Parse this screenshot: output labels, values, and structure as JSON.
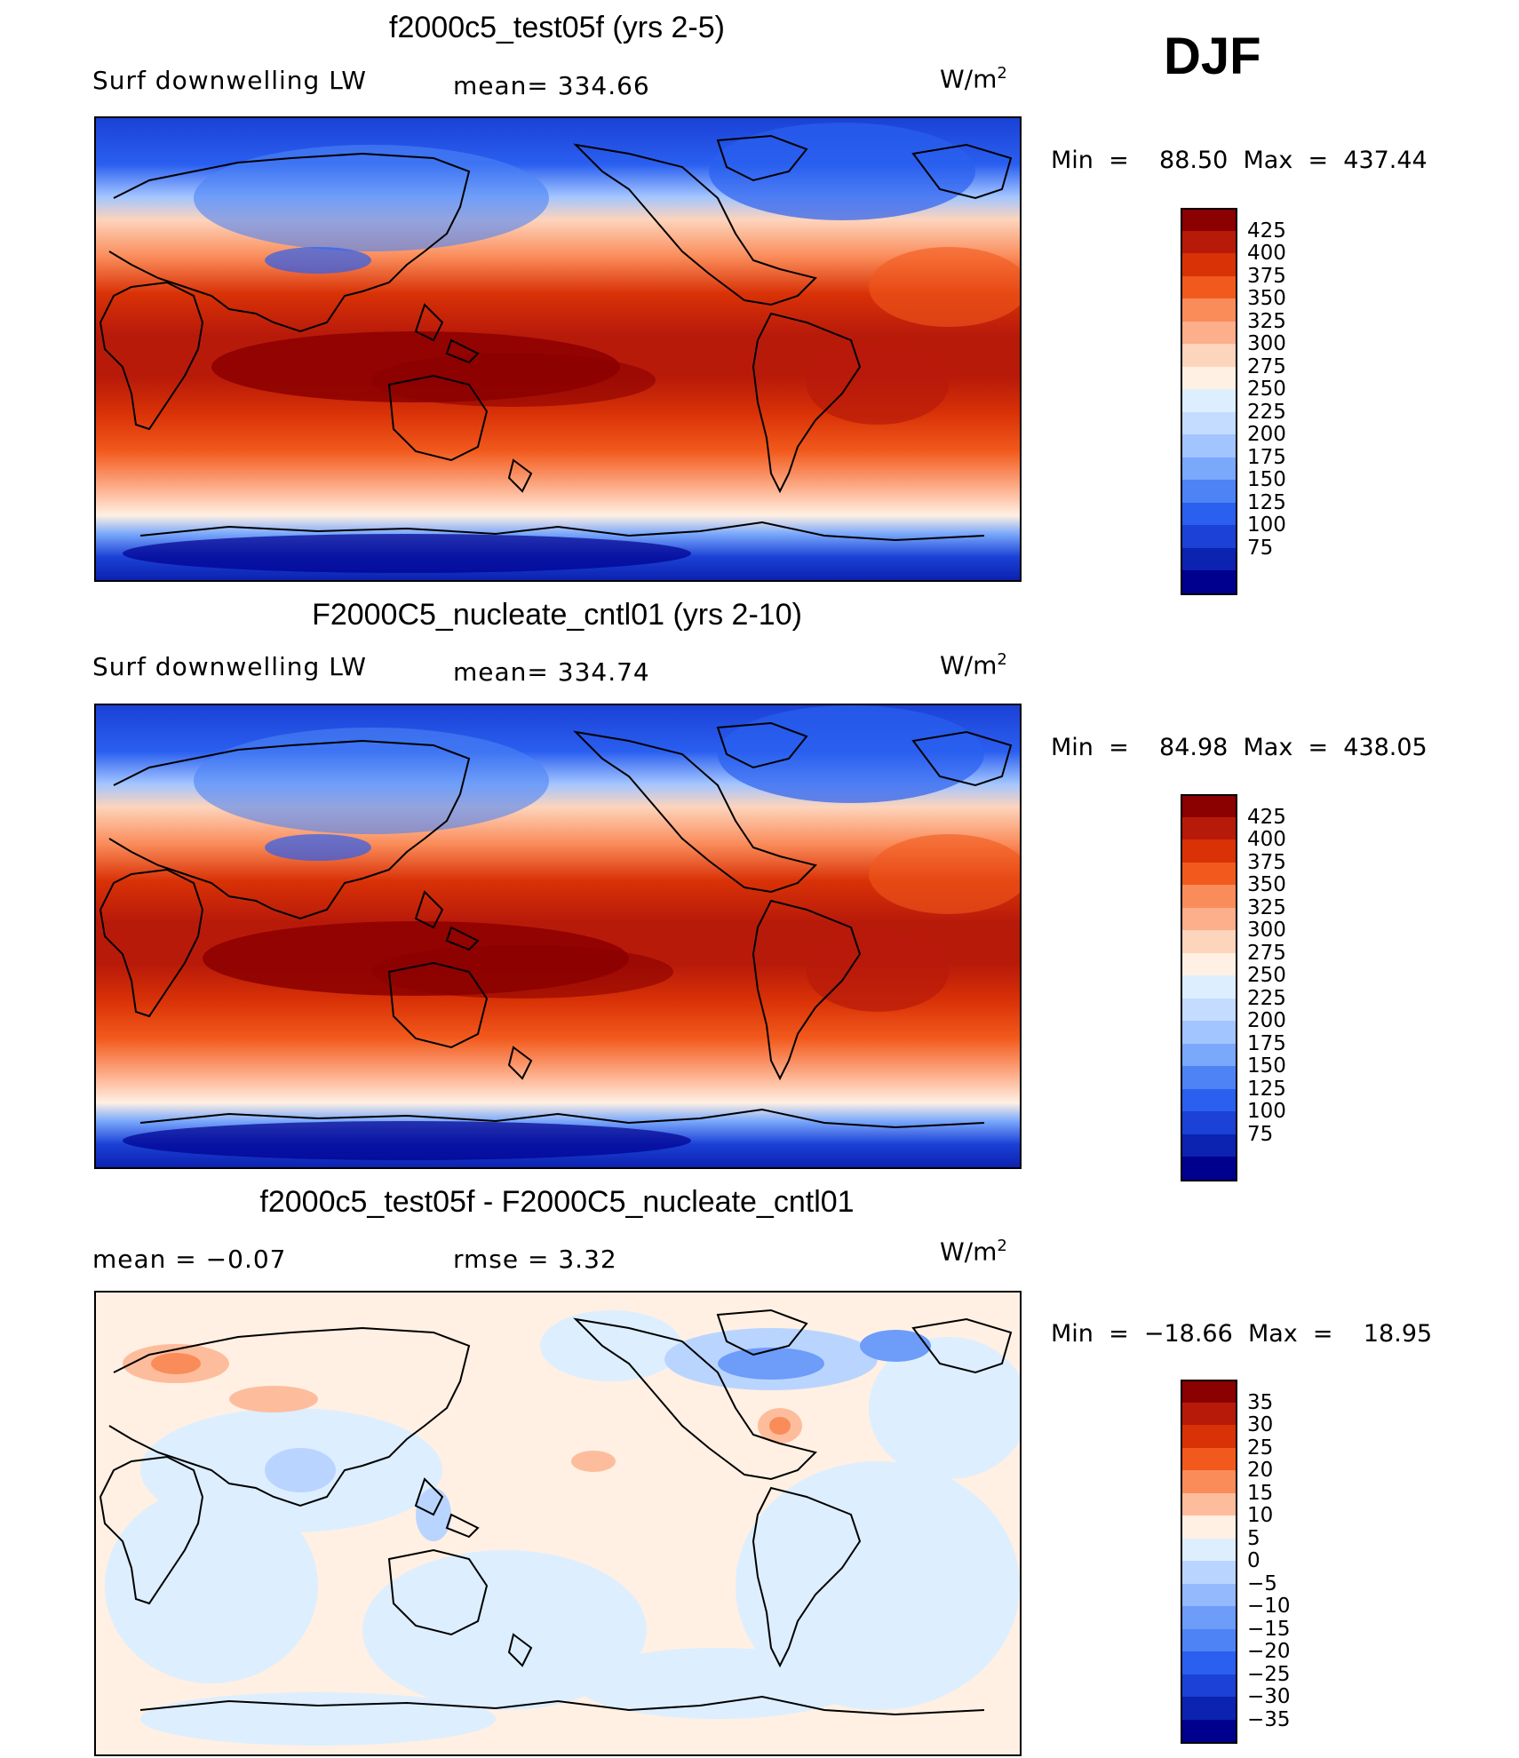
{
  "season": "DJF",
  "units_base": "W/m",
  "units_sup": "2",
  "panels": [
    {
      "title": "f2000c5_test05f (yrs 2-5)",
      "left_label": "Surf  downwelling  LW",
      "center_label": "mean=  334.66",
      "minmax": "Min  =    88.50  Max  =  437.44",
      "kind": "abs"
    },
    {
      "title": "F2000C5_nucleate_cntl01 (yrs 2-10)",
      "left_label": "Surf  downwelling  LW",
      "center_label": "mean=  334.74",
      "minmax": "Min  =    84.98  Max  =  438.05",
      "kind": "abs"
    },
    {
      "title": "f2000c5_test05f - F2000C5_nucleate_cntl01",
      "left_label": "mean  =     −0.07",
      "center_label": "rmse  =      3.32",
      "minmax": "Min  =  −18.66  Max  =    18.95",
      "kind": "diff"
    }
  ],
  "colorbars": {
    "abs": {
      "colors": [
        "#8b0000",
        "#b81a0a",
        "#d93207",
        "#f2591c",
        "#fa8c5a",
        "#fdae8a",
        "#fdd4bc",
        "#fff0e3",
        "#ddeeff",
        "#c4dcff",
        "#a3c5ff",
        "#7aa8fb",
        "#4d83f5",
        "#2a5ff0",
        "#1b41d6",
        "#0c22b0",
        "#00008e"
      ],
      "labels": [
        "425",
        "400",
        "375",
        "350",
        "325",
        "300",
        "275",
        "250",
        "225",
        "200",
        "175",
        "150",
        "125",
        "100",
        "75"
      ]
    },
    "diff": {
      "colors": [
        "#8b0000",
        "#b81a0a",
        "#d93207",
        "#f2591c",
        "#fa8c5a",
        "#fdbd9d",
        "#fff0e3",
        "#ddeeff",
        "#b9d5ff",
        "#94b9fd",
        "#6d9cf9",
        "#4d83f5",
        "#2a5ff0",
        "#1b41d6",
        "#0c22b0",
        "#00008e"
      ],
      "labels": [
        "35",
        "30",
        "25",
        "20",
        "15",
        "10",
        "5",
        "0",
        "−5",
        "−10",
        "−15",
        "−20",
        "−25",
        "−30",
        "−35"
      ]
    }
  }
}
